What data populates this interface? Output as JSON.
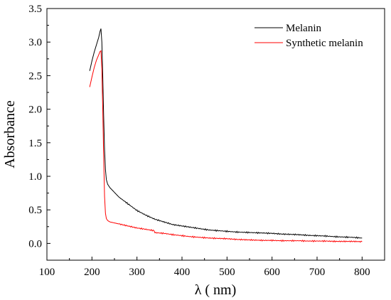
{
  "chart_data": {
    "type": "line",
    "title": "",
    "xlabel": "λ (  nm)",
    "ylabel": "Absorbance",
    "xlim": [
      100,
      850
    ],
    "ylim": [
      -0.25,
      3.5
    ],
    "xticks": [
      "100",
      "200",
      "300",
      "400",
      "500",
      "600",
      "700",
      "800"
    ],
    "yticks": [
      "0.0",
      "0.5",
      "1.0",
      "1.5",
      "2.0",
      "2.5",
      "3.0",
      "3.5"
    ],
    "grid": false,
    "legend_position": "top-right",
    "series": [
      {
        "name": "Melanin",
        "color": "#000000",
        "points": [
          [
            195,
            2.57
          ],
          [
            200,
            2.72
          ],
          [
            205,
            2.85
          ],
          [
            210,
            2.96
          ],
          [
            215,
            3.07
          ],
          [
            218,
            3.16
          ],
          [
            220,
            3.2
          ],
          [
            222,
            3.0
          ],
          [
            224,
            2.5
          ],
          [
            226,
            1.9
          ],
          [
            228,
            1.4
          ],
          [
            230,
            1.1
          ],
          [
            232,
            0.95
          ],
          [
            235,
            0.88
          ],
          [
            240,
            0.83
          ],
          [
            250,
            0.76
          ],
          [
            260,
            0.69
          ],
          [
            280,
            0.59
          ],
          [
            300,
            0.49
          ],
          [
            320,
            0.42
          ],
          [
            340,
            0.36
          ],
          [
            360,
            0.32
          ],
          [
            380,
            0.28
          ],
          [
            400,
            0.26
          ],
          [
            420,
            0.24
          ],
          [
            440,
            0.22
          ],
          [
            460,
            0.2
          ],
          [
            480,
            0.19
          ],
          [
            500,
            0.18
          ],
          [
            520,
            0.17
          ],
          [
            540,
            0.165
          ],
          [
            560,
            0.16
          ],
          [
            580,
            0.155
          ],
          [
            600,
            0.15
          ],
          [
            620,
            0.14
          ],
          [
            640,
            0.135
          ],
          [
            660,
            0.13
          ],
          [
            680,
            0.12
          ],
          [
            700,
            0.115
          ],
          [
            720,
            0.11
          ],
          [
            740,
            0.1
          ],
          [
            760,
            0.095
          ],
          [
            780,
            0.09
          ],
          [
            800,
            0.08
          ]
        ]
      },
      {
        "name": "Synthetic melanin",
        "color": "#ff0000",
        "points": [
          [
            195,
            2.33
          ],
          [
            200,
            2.48
          ],
          [
            205,
            2.62
          ],
          [
            210,
            2.73
          ],
          [
            215,
            2.81
          ],
          [
            218,
            2.86
          ],
          [
            220,
            2.87
          ],
          [
            222,
            2.6
          ],
          [
            224,
            2.0
          ],
          [
            226,
            1.3
          ],
          [
            228,
            0.7
          ],
          [
            230,
            0.45
          ],
          [
            232,
            0.37
          ],
          [
            235,
            0.34
          ],
          [
            240,
            0.32
          ],
          [
            260,
            0.29
          ],
          [
            280,
            0.26
          ],
          [
            300,
            0.23
          ],
          [
            320,
            0.21
          ],
          [
            338,
            0.19
          ],
          [
            340,
            0.16
          ],
          [
            360,
            0.15
          ],
          [
            380,
            0.13
          ],
          [
            400,
            0.115
          ],
          [
            420,
            0.1
          ],
          [
            440,
            0.09
          ],
          [
            460,
            0.08
          ],
          [
            480,
            0.075
          ],
          [
            500,
            0.07
          ],
          [
            520,
            0.06
          ],
          [
            540,
            0.055
          ],
          [
            560,
            0.05
          ],
          [
            580,
            0.045
          ],
          [
            600,
            0.045
          ],
          [
            620,
            0.04
          ],
          [
            640,
            0.04
          ],
          [
            660,
            0.04
          ],
          [
            680,
            0.035
          ],
          [
            700,
            0.035
          ],
          [
            720,
            0.035
          ],
          [
            740,
            0.03
          ],
          [
            760,
            0.03
          ],
          [
            780,
            0.03
          ],
          [
            800,
            0.025
          ]
        ]
      }
    ]
  }
}
